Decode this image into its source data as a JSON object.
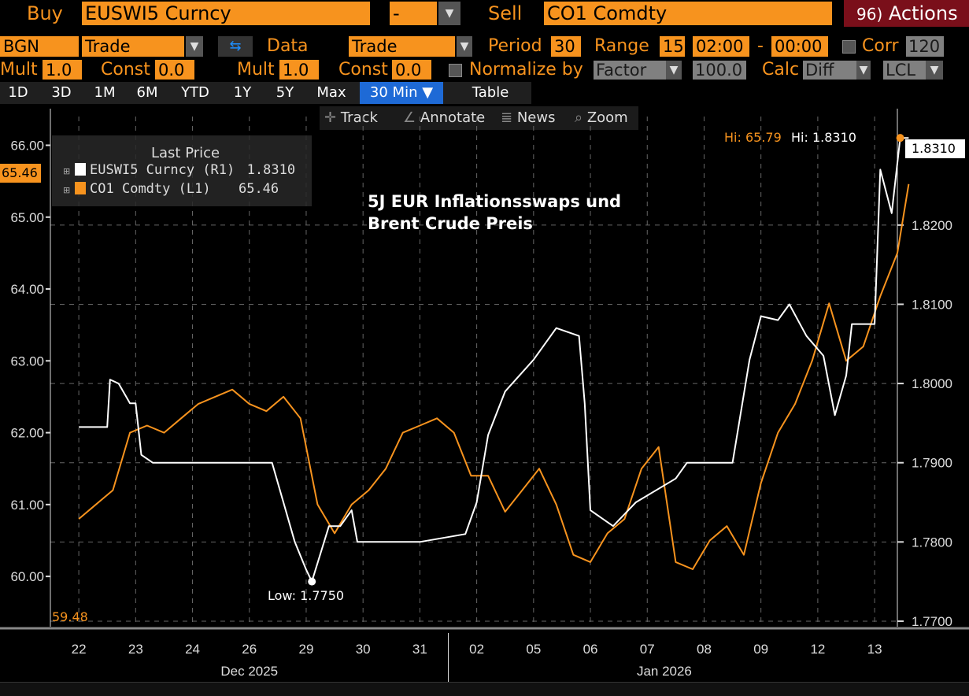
{
  "header": {
    "buy_label": "Buy",
    "buy_value": "EUSWI5 Curncy",
    "dash_value": "-",
    "sell_label": "Sell",
    "sell_value": "CO1 Comdty",
    "actions_prefix": "96)",
    "actions_label": "Actions"
  },
  "row2": {
    "bgn": "BGN",
    "trade1": "Trade",
    "data_label": "Data",
    "trade2": "Trade",
    "period_label": "Period",
    "period_value": "30",
    "range_label": "Range",
    "range_value": "15",
    "time_from": "02:00",
    "time_sep": "-",
    "time_to": "00:00",
    "corr_label": "Corr",
    "corr_value": "120"
  },
  "row3": {
    "mult1_label": "Mult",
    "mult1_value": "1.0",
    "const1_label": "Const",
    "const1_value": "0.0",
    "mult2_label": "Mult",
    "mult2_value": "1.0",
    "const2_label": "Const",
    "const2_value": "0.0",
    "normalize_label": "Normalize by",
    "factor_value": "Factor",
    "factor_num": "100.0",
    "calc_label": "Calc",
    "calc_value": "Diff",
    "lcl_value": "LCL"
  },
  "tabs": [
    "1D",
    "3D",
    "1M",
    "6M",
    "YTD",
    "1Y",
    "5Y",
    "Max",
    "30 Min ▼",
    "Table"
  ],
  "toolbar": {
    "track": "Track",
    "annotate": "Annotate",
    "news": "News",
    "zoom": "Zoom"
  },
  "legend": {
    "title": "Last Price",
    "s1_name": "EUSWI5 Curncy  (R1)",
    "s1_value": "1.8310",
    "s2_name": "CO1 Comdty  (L1)",
    "s2_value": "65.46"
  },
  "annotations": {
    "title_line1": "5J EUR Inflationsswaps und",
    "title_line2": "Brent Crude Preis",
    "hi_orange": "Hi: 65.79",
    "hi_white": "Hi: 1.8310",
    "low_white": "Low: 1.7750",
    "last_right": "1.8310",
    "last_left": "65.46",
    "low_left": "59.48"
  },
  "colors": {
    "brent": "#f7931e",
    "swap": "#ffffff",
    "accent": "#1e6ad6",
    "background": "#000000"
  },
  "chart_data": {
    "type": "line",
    "title": "5J EUR Inflationsswaps und Brent Crude Preis",
    "x_ticks": [
      "22",
      "23",
      "24",
      "26",
      "29",
      "30",
      "31",
      "02",
      "05",
      "06",
      "07",
      "08",
      "09",
      "12",
      "13"
    ],
    "x_month_labels": [
      "Dec 2025",
      "Jan 2026"
    ],
    "y_left": {
      "ticks": [
        "66.00",
        "65.00",
        "64.00",
        "63.00",
        "62.00",
        "61.00",
        "60.00"
      ],
      "range": [
        59.3,
        66.4
      ]
    },
    "y_right": {
      "ticks": [
        "1.8200",
        "1.8100",
        "1.8000",
        "1.7900",
        "1.7800",
        "1.7700"
      ],
      "range": [
        1.7693,
        1.8337
      ]
    },
    "series": [
      {
        "name": "CO1 Comdty",
        "axis": "left",
        "x": [
          0,
          0.3,
          0.6,
          0.9,
          1.2,
          1.5,
          1.8,
          2.1,
          2.4,
          2.7,
          3.0,
          3.3,
          3.6,
          3.9,
          4.2,
          4.5,
          4.8,
          5.1,
          5.4,
          5.7,
          6.0,
          6.3,
          6.6,
          6.9,
          7.2,
          7.5,
          7.8,
          8.1,
          8.4,
          8.7,
          9.0,
          9.3,
          9.6,
          9.9,
          10.2,
          10.5,
          10.8,
          11.1,
          11.4,
          11.7,
          12.0,
          12.3,
          12.6,
          12.9,
          13.2,
          13.5,
          13.8,
          14.1,
          14.4,
          14.6
        ],
        "values": [
          60.8,
          61.0,
          61.2,
          62.0,
          62.1,
          62.0,
          62.2,
          62.4,
          62.5,
          62.6,
          62.4,
          62.3,
          62.5,
          62.2,
          61.0,
          60.6,
          61.0,
          61.2,
          61.5,
          62.0,
          62.1,
          62.2,
          62.0,
          61.4,
          61.4,
          60.9,
          61.2,
          61.5,
          61.0,
          60.3,
          60.2,
          60.6,
          60.8,
          61.5,
          61.8,
          60.2,
          60.1,
          60.5,
          60.7,
          60.3,
          61.3,
          62.0,
          62.4,
          63.0,
          63.8,
          63.0,
          63.2,
          63.9,
          64.5,
          65.46
        ]
      },
      {
        "name": "EUSWI5 Curncy",
        "axis": "right",
        "x": [
          0,
          0.5,
          0.55,
          0.7,
          0.9,
          1.0,
          1.1,
          1.3,
          2.0,
          2.8,
          3.4,
          3.8,
          4.0,
          4.1,
          4.4,
          4.6,
          4.8,
          4.9,
          5.3,
          6.0,
          6.8,
          7.0,
          7.2,
          7.5,
          8.0,
          8.4,
          8.8,
          8.9,
          9.0,
          9.4,
          9.6,
          9.8,
          10.5,
          10.7,
          11.0,
          11.5,
          11.8,
          12.0,
          12.3,
          12.5,
          12.8,
          13.1,
          13.3,
          13.5,
          13.6,
          13.8,
          14.0,
          14.1,
          14.3,
          14.45,
          14.6
        ],
        "values": [
          1.7945,
          1.7945,
          1.8005,
          1.8,
          1.7975,
          1.7975,
          1.791,
          1.79,
          1.79,
          1.79,
          1.79,
          1.78,
          1.7765,
          1.775,
          1.782,
          1.782,
          1.784,
          1.78,
          1.78,
          1.78,
          1.781,
          1.785,
          1.7935,
          1.799,
          1.803,
          1.807,
          1.806,
          1.7975,
          1.784,
          1.782,
          1.7835,
          1.785,
          1.788,
          1.79,
          1.79,
          1.79,
          1.803,
          1.8085,
          1.808,
          1.81,
          1.806,
          1.8035,
          1.796,
          1.801,
          1.8075,
          1.8075,
          1.8075,
          1.827,
          1.8215,
          1.831,
          1.831
        ]
      }
    ],
    "grid": true,
    "legend_placement": "top-left"
  }
}
